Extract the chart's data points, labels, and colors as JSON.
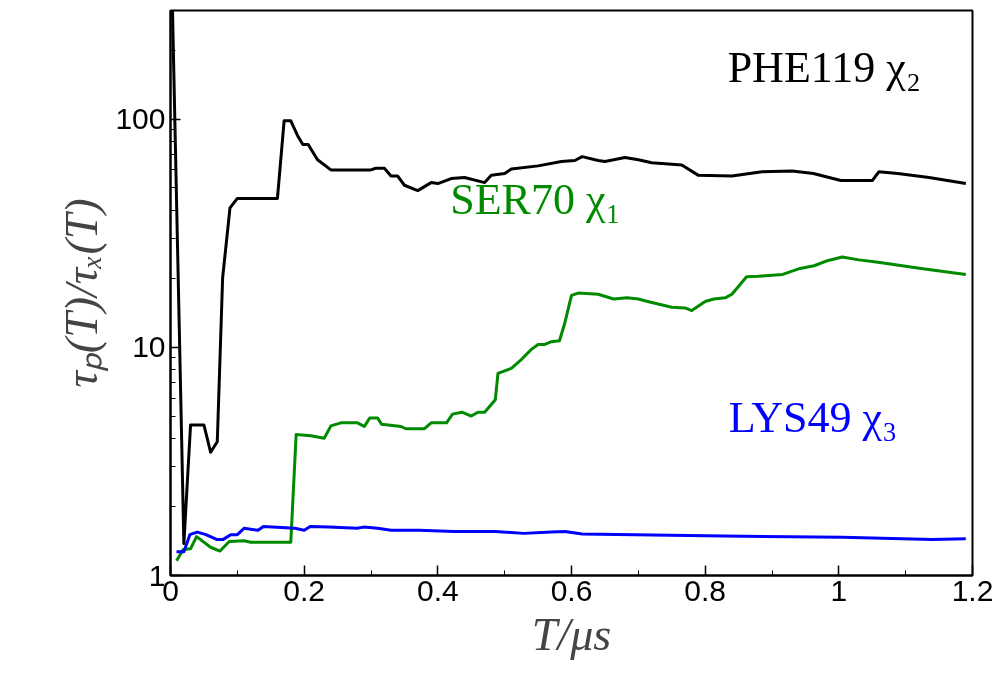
{
  "chart_data": {
    "type": "line",
    "xlabel": "T/μs",
    "ylabel": "τₚ(T)/τₓ(T)",
    "log": "y",
    "grid": false,
    "legend": false,
    "xlim": [
      0,
      1.2
    ],
    "ylim": [
      1,
      300
    ],
    "xticks": [
      0,
      0.2,
      0.4,
      0.6,
      0.8,
      {
        "value": 1,
        "label": "1"
      },
      1.2
    ],
    "yticks": [
      1,
      10,
      100
    ],
    "series": [
      {
        "name": "PHE119 χ₂",
        "color": "#000000",
        "x": [
          0.003,
          0.02,
          0.03,
          0.05,
          0.06,
          0.07,
          0.078,
          0.089,
          0.1,
          0.16,
          0.17,
          0.18,
          0.19,
          0.198,
          0.206,
          0.22,
          0.24,
          0.3,
          0.307,
          0.32,
          0.33,
          0.34,
          0.35,
          0.37,
          0.39,
          0.4,
          0.42,
          0.44,
          0.47,
          0.48,
          0.5,
          0.51,
          0.55,
          0.585,
          0.605,
          0.616,
          0.64,
          0.65,
          0.68,
          0.7,
          0.72,
          0.765,
          0.79,
          0.84,
          0.885,
          0.93,
          0.962,
          1.003,
          1.05,
          1.06,
          1.088,
          1.135,
          1.19
        ],
        "values": [
          300,
          1.38,
          4.57,
          4.57,
          3.47,
          3.86,
          20.2,
          40.9,
          45,
          45,
          98.5,
          98.5,
          85,
          77.5,
          77.5,
          66.5,
          60,
          60,
          61,
          61,
          56.4,
          56.4,
          51.4,
          48.7,
          52.8,
          52.3,
          55,
          55.6,
          52.8,
          56.8,
          57.9,
          60.5,
          62.5,
          65.3,
          66,
          68.6,
          66,
          65.3,
          68,
          66.5,
          64.5,
          63,
          56.8,
          56.4,
          58.9,
          59.4,
          57.9,
          53.9,
          53.9,
          58.9,
          57.9,
          55.6,
          52.3
        ]
      },
      {
        "name": "SER70 χ₁",
        "color": "#008a00",
        "x": [
          0.009,
          0.019,
          0.03,
          0.039,
          0.06,
          0.074,
          0.088,
          0.11,
          0.12,
          0.18,
          0.188,
          0.21,
          0.23,
          0.24,
          0.255,
          0.28,
          0.29,
          0.298,
          0.31,
          0.316,
          0.345,
          0.352,
          0.38,
          0.39,
          0.413,
          0.422,
          0.436,
          0.45,
          0.46,
          0.47,
          0.486,
          0.49,
          0.51,
          0.525,
          0.54,
          0.55,
          0.56,
          0.57,
          0.582,
          0.59,
          0.6,
          0.61,
          0.64,
          0.663,
          0.683,
          0.7,
          0.714,
          0.75,
          0.77,
          0.78,
          0.8,
          0.813,
          0.83,
          0.84,
          0.862,
          0.88,
          0.916,
          0.942,
          0.963,
          0.983,
          1.005,
          1.03,
          1.056,
          1.082,
          1.123,
          1.19
        ],
        "values": [
          1.16,
          1.3,
          1.31,
          1.48,
          1.33,
          1.28,
          1.41,
          1.42,
          1.4,
          1.4,
          4.15,
          4.1,
          4.0,
          4.53,
          4.67,
          4.67,
          4.5,
          4.9,
          4.9,
          4.6,
          4.5,
          4.4,
          4.4,
          4.67,
          4.67,
          5.1,
          5.2,
          5.0,
          5.2,
          5.2,
          5.9,
          7.7,
          8.1,
          8.85,
          9.8,
          10.3,
          10.3,
          10.6,
          10.7,
          12.8,
          16.9,
          17.3,
          17.1,
          16.3,
          16.5,
          16.3,
          15.9,
          15,
          14.9,
          14.5,
          15.9,
          16.3,
          16.5,
          17.1,
          20.4,
          20.5,
          20.9,
          22.2,
          22.8,
          24,
          24.9,
          24.2,
          23.7,
          23.1,
          22.2,
          20.9
        ]
      },
      {
        "name": "LYS49 χ₃",
        "color": "#0000ff",
        "x": [
          0.009,
          0.02,
          0.029,
          0.04,
          0.053,
          0.069,
          0.079,
          0.09,
          0.1,
          0.11,
          0.131,
          0.139,
          0.186,
          0.2,
          0.209,
          0.237,
          0.279,
          0.289,
          0.31,
          0.33,
          0.372,
          0.424,
          0.45,
          0.486,
          0.528,
          0.57,
          0.59,
          0.616,
          0.694,
          0.828,
          1.005,
          1.14,
          1.19
        ],
        "values": [
          1.27,
          1.27,
          1.51,
          1.55,
          1.51,
          1.44,
          1.44,
          1.51,
          1.51,
          1.61,
          1.58,
          1.64,
          1.61,
          1.58,
          1.64,
          1.63,
          1.61,
          1.63,
          1.61,
          1.58,
          1.58,
          1.56,
          1.56,
          1.56,
          1.53,
          1.55,
          1.56,
          1.52,
          1.51,
          1.49,
          1.47,
          1.44,
          1.45
        ]
      }
    ]
  }
}
